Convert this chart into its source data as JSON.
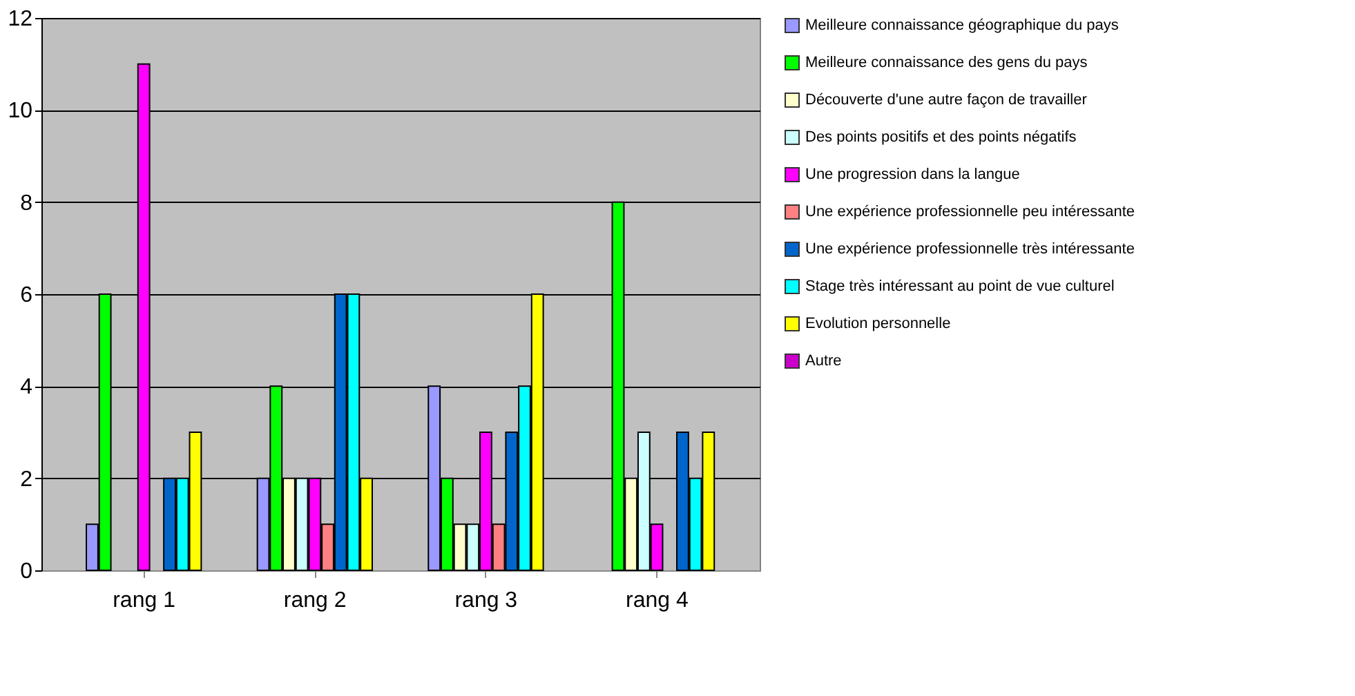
{
  "chart_data": {
    "type": "bar",
    "categories": [
      "rang 1",
      "rang 2",
      "rang 3",
      "rang 4"
    ],
    "series": [
      {
        "name": "Meilleure connaissance géographique du pays",
        "color": "#9999ff",
        "values": [
          1,
          2,
          4,
          0
        ]
      },
      {
        "name": "Meilleure connaissance des gens du pays",
        "color": "#00ff00",
        "values": [
          6,
          4,
          2,
          8
        ]
      },
      {
        "name": "Découverte d'une autre façon de travailler",
        "color": "#ffffcc",
        "values": [
          0,
          2,
          1,
          2
        ]
      },
      {
        "name": "Des points positifs et des points négatifs",
        "color": "#ccffff",
        "values": [
          0,
          2,
          1,
          3
        ]
      },
      {
        "name": "Une progression dans la langue",
        "color": "#ff00ff",
        "values": [
          11,
          2,
          3,
          1
        ]
      },
      {
        "name": "Une expérience professionnelle peu intéressante",
        "color": "#ff8080",
        "values": [
          0,
          1,
          1,
          0
        ]
      },
      {
        "name": "Une expérience professionnelle très intéressante",
        "color": "#0066cc",
        "values": [
          2,
          6,
          3,
          3
        ]
      },
      {
        "name": "Stage très intéressant au point de vue culturel",
        "color": "#00ffff",
        "values": [
          2,
          6,
          4,
          2
        ]
      },
      {
        "name": "Evolution personnelle",
        "color": "#ffff00",
        "values": [
          3,
          2,
          6,
          3
        ]
      },
      {
        "name": "Autre",
        "color": "#cc00cc",
        "values": [
          0,
          0,
          0,
          0
        ]
      }
    ],
    "ylim": [
      0,
      12
    ],
    "yticks": [
      0,
      2,
      4,
      6,
      8,
      10,
      12
    ],
    "grid": "y",
    "legend": "right"
  }
}
